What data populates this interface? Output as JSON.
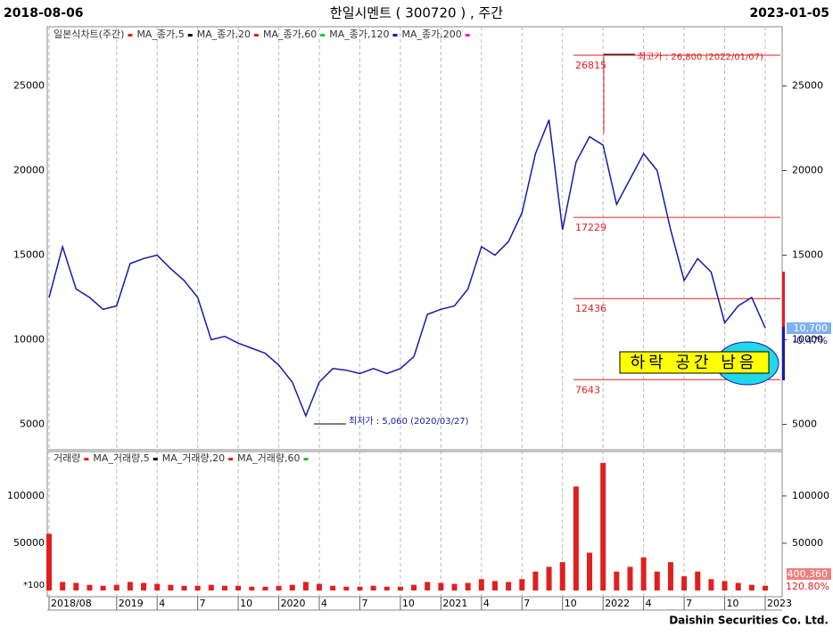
{
  "chart_data": {
    "type": "stock",
    "header": {
      "start": "2018-08-06",
      "title": "한일시멘트 ( 300720 ) , 주간",
      "end": "2023-01-05"
    },
    "legend": [
      "일본식차트(주간)",
      "MA_종가,5",
      "MA_종가,20",
      "MA_종가,60",
      "MA_종가,120",
      "MA_종가,200"
    ],
    "volume_legend": [
      "거래량",
      "MA_거래량,5",
      "MA_거래량,20",
      "MA_거래량,60"
    ],
    "categories": [
      "2018/08",
      null,
      null,
      null,
      null,
      "2019",
      null,
      null,
      "4",
      null,
      null,
      "7",
      null,
      null,
      "10",
      null,
      null,
      "2020",
      null,
      null,
      "4",
      null,
      null,
      "7",
      null,
      null,
      "10",
      null,
      null,
      "2021",
      null,
      null,
      "4",
      null,
      null,
      "7",
      null,
      null,
      "10",
      null,
      null,
      "2022",
      null,
      null,
      "4",
      null,
      null,
      "7",
      null,
      null,
      "10",
      null,
      null,
      "2023"
    ],
    "series": [
      {
        "name": "일본식차트(주간)",
        "color": "#1a1aa6",
        "values": [
          12500,
          15500,
          13000,
          12500,
          11800,
          12000,
          14500,
          14800,
          15000,
          14200,
          13500,
          12500,
          10000,
          10200,
          9800,
          9500,
          9200,
          8500,
          7500,
          5500,
          7500,
          8300,
          8200,
          8000,
          8300,
          8000,
          8300,
          9000,
          11500,
          11800,
          12000,
          13000,
          15500,
          15000,
          15800,
          17500,
          21000,
          23000,
          16500,
          20500,
          22000,
          21500,
          18000,
          19500,
          21000,
          20000,
          16500,
          13500,
          14800,
          14000,
          11000,
          12000,
          12500,
          10700
        ]
      }
    ],
    "volume": {
      "name": "거래량",
      "color": "#e02020",
      "values": [
        60000,
        9000,
        8000,
        6000,
        5000,
        6000,
        9000,
        8000,
        7000,
        6000,
        5000,
        5000,
        6000,
        5000,
        5000,
        4000,
        4000,
        5000,
        6000,
        9000,
        7000,
        5000,
        4000,
        4000,
        5000,
        4000,
        4000,
        6000,
        9000,
        8000,
        7000,
        8000,
        12000,
        10000,
        9000,
        12000,
        20000,
        25000,
        30000,
        110000,
        40000,
        135000,
        20000,
        25000,
        35000,
        20000,
        30000,
        15000,
        20000,
        12000,
        10000,
        8000,
        6000,
        5000
      ]
    },
    "ylim": [
      3500,
      28500
    ],
    "yticks": [
      5000,
      10000,
      15000,
      20000,
      25000
    ],
    "vlim": [
      0,
      147000
    ],
    "vticks": [
      50000,
      100000
    ],
    "levels": [
      26815,
      17229,
      12436,
      7643
    ],
    "level_color": "#e02020",
    "annotations": {
      "high": "최고가 : 26,800 (2022/01/07)",
      "low": "최저가 : 5,060 (2020/03/27)",
      "note": "하락 공간 남음",
      "scale": "*100"
    },
    "badges": {
      "price": "10,700",
      "change": "-0.47%",
      "volume": "400,360",
      "volume_change": "120.80%"
    },
    "footer": "Daishin Securities Co. Ltd."
  }
}
